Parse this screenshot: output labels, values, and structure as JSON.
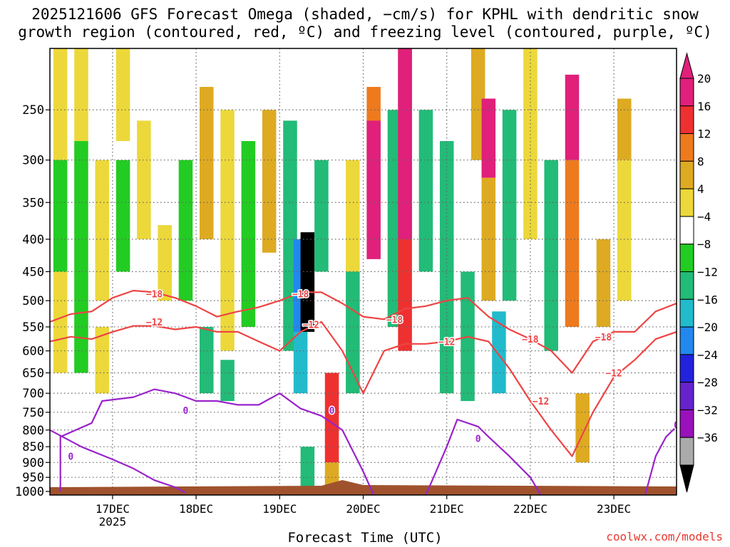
{
  "title_line1": "2025121606 GFS Forecast Omega (shaded, −cm/s) for KPHL with dendritic snow",
  "title_line2": "growth region (contoured, red, ºC) and freezing level (contoured, purple, ºC)",
  "xlabel": "Forecast Time (UTC)",
  "credit": "coolwx.com/models",
  "colors": {
    "terrain": "#a0522d",
    "dgz_contour": "#ee4444",
    "freezing_contour": "#9a22cc",
    "gridline": "#666666"
  },
  "colorbar": {
    "labels": [
      "20",
      "16",
      "12",
      "8",
      "4",
      "−4",
      "−8",
      "−12",
      "−16",
      "−20",
      "−24",
      "−28",
      "−32",
      "−36"
    ],
    "bins": [
      {
        "color": "#e0207a"
      },
      {
        "color": "#ee3030"
      },
      {
        "color": "#ee7a1e"
      },
      {
        "color": "#ddaa22"
      },
      {
        "color": "#ecd83a"
      },
      {
        "color": "#ffffff"
      },
      {
        "color": "#22cc22"
      },
      {
        "color": "#22bb77"
      },
      {
        "color": "#22bbcc"
      },
      {
        "color": "#2288ee"
      },
      {
        "color": "#2222dd"
      },
      {
        "color": "#6622cc"
      },
      {
        "color": "#9911bb"
      },
      {
        "color": "#aaaaaa"
      }
    ],
    "top_extend_color": "#e0207a",
    "bottom_extend_color": "#000000"
  },
  "chart_data": {
    "type": "heatmap",
    "x_axis": {
      "ticks": [
        "17DEC",
        "18DEC",
        "19DEC",
        "20DEC",
        "21DEC",
        "22DEC",
        "23DEC"
      ],
      "year_label": "2025",
      "range_days": [
        "2025-12-16 06",
        "2025-12-23 18"
      ]
    },
    "y_axis": {
      "label": "",
      "ticks": [
        "250",
        "300",
        "350",
        "400",
        "450",
        "500",
        "550",
        "600",
        "650",
        "700",
        "750",
        "800",
        "850",
        "900",
        "950",
        "1000"
      ],
      "range_hpa": [
        200,
        1013
      ],
      "scale": "log"
    },
    "grid": true,
    "shading_quantity": "Omega (−cm/s)",
    "omega_cells": [
      {
        "time": "2025-12-16 09",
        "p_top": 200,
        "p_bot": 300,
        "v": 6
      },
      {
        "time": "2025-12-16 09",
        "p_top": 300,
        "p_bot": 450,
        "v": -6
      },
      {
        "time": "2025-12-16 09",
        "p_top": 450,
        "p_bot": 650,
        "v": 5
      },
      {
        "time": "2025-12-16 15",
        "p_top": 200,
        "p_bot": 280,
        "v": 5
      },
      {
        "time": "2025-12-16 15",
        "p_top": 280,
        "p_bot": 650,
        "v": -6
      },
      {
        "time": "2025-12-16 21",
        "p_top": 300,
        "p_bot": 500,
        "v": 6
      },
      {
        "time": "2025-12-16 21",
        "p_top": 550,
        "p_bot": 700,
        "v": 5
      },
      {
        "time": "2025-12-17 03",
        "p_top": 300,
        "p_bot": 450,
        "v": -6
      },
      {
        "time": "2025-12-17 03",
        "p_top": 200,
        "p_bot": 280,
        "v": 6
      },
      {
        "time": "2025-12-17 09",
        "p_top": 260,
        "p_bot": 400,
        "v": 6
      },
      {
        "time": "2025-12-17 15",
        "p_top": 380,
        "p_bot": 500,
        "v": 5
      },
      {
        "time": "2025-12-17 21",
        "p_top": 300,
        "p_bot": 500,
        "v": -6
      },
      {
        "time": "2025-12-18 03",
        "p_top": 230,
        "p_bot": 400,
        "v": 10
      },
      {
        "time": "2025-12-18 03",
        "p_top": 550,
        "p_bot": 700,
        "v": -9
      },
      {
        "time": "2025-12-18 09",
        "p_top": 250,
        "p_bot": 600,
        "v": 6
      },
      {
        "time": "2025-12-18 09",
        "p_top": 620,
        "p_bot": 720,
        "v": -8
      },
      {
        "time": "2025-12-18 15",
        "p_top": 280,
        "p_bot": 550,
        "v": -6
      },
      {
        "time": "2025-12-18 21",
        "p_top": 250,
        "p_bot": 420,
        "v": 9
      },
      {
        "time": "2025-12-19 03",
        "p_top": 260,
        "p_bot": 600,
        "v": -8
      },
      {
        "time": "2025-12-19 06",
        "p_top": 400,
        "p_bot": 560,
        "v": -18
      },
      {
        "time": "2025-12-19 06",
        "p_top": 560,
        "p_bot": 700,
        "v": -12
      },
      {
        "time": "2025-12-19 08",
        "p_top": 390,
        "p_bot": 560,
        "v": -38
      },
      {
        "time": "2025-12-19 08",
        "p_top": 850,
        "p_bot": 1000,
        "v": -9
      },
      {
        "time": "2025-12-19 12",
        "p_top": 300,
        "p_bot": 450,
        "v": -8
      },
      {
        "time": "2025-12-19 15",
        "p_top": 650,
        "p_bot": 900,
        "v": 18
      },
      {
        "time": "2025-12-19 15",
        "p_top": 900,
        "p_bot": 1000,
        "v": 10
      },
      {
        "time": "2025-12-19 21",
        "p_top": 300,
        "p_bot": 450,
        "v": 6
      },
      {
        "time": "2025-12-19 21",
        "p_top": 450,
        "p_bot": 700,
        "v": -9
      },
      {
        "time": "2025-12-20 03",
        "p_top": 230,
        "p_bot": 350,
        "v": 14
      },
      {
        "time": "2025-12-20 03",
        "p_top": 260,
        "p_bot": 430,
        "v": 20
      },
      {
        "time": "2025-12-20 09",
        "p_top": 250,
        "p_bot": 550,
        "v": -9
      },
      {
        "time": "2025-12-20 12",
        "p_top": 200,
        "p_bot": 600,
        "v": 18
      },
      {
        "time": "2025-12-20 12",
        "p_top": 200,
        "p_bot": 400,
        "v": 24
      },
      {
        "time": "2025-12-20 18",
        "p_top": 250,
        "p_bot": 450,
        "v": -8
      },
      {
        "time": "2025-12-21 00",
        "p_top": 280,
        "p_bot": 700,
        "v": -10
      },
      {
        "time": "2025-12-21 06",
        "p_top": 450,
        "p_bot": 720,
        "v": -10
      },
      {
        "time": "2025-12-21 09",
        "p_top": 200,
        "p_bot": 300,
        "v": 8
      },
      {
        "time": "2025-12-21 12",
        "p_top": 240,
        "p_bot": 320,
        "v": 22
      },
      {
        "time": "2025-12-21 12",
        "p_top": 320,
        "p_bot": 500,
        "v": 10
      },
      {
        "time": "2025-12-21 15",
        "p_top": 520,
        "p_bot": 700,
        "v": -14
      },
      {
        "time": "2025-12-21 18",
        "p_top": 250,
        "p_bot": 500,
        "v": -8
      },
      {
        "time": "2025-12-22 00",
        "p_top": 200,
        "p_bot": 400,
        "v": 6
      },
      {
        "time": "2025-12-22 06",
        "p_top": 300,
        "p_bot": 600,
        "v": -9
      },
      {
        "time": "2025-12-22 12",
        "p_top": 220,
        "p_bot": 300,
        "v": 20
      },
      {
        "time": "2025-12-22 12",
        "p_top": 300,
        "p_bot": 550,
        "v": 12
      },
      {
        "time": "2025-12-22 15",
        "p_top": 700,
        "p_bot": 900,
        "v": 8
      },
      {
        "time": "2025-12-22 21",
        "p_top": 400,
        "p_bot": 550,
        "v": 8
      },
      {
        "time": "2025-12-23 03",
        "p_top": 240,
        "p_bot": 300,
        "v": 10
      },
      {
        "time": "2025-12-23 03",
        "p_top": 300,
        "p_bot": 500,
        "v": 5
      }
    ],
    "dgz_contours": [
      {
        "label": "−18",
        "color": "#ee4444",
        "points": [
          [
            "2025-12-16 06",
            540
          ],
          [
            "2025-12-16 12",
            525
          ],
          [
            "2025-12-16 18",
            520
          ],
          [
            "2025-12-17 00",
            495
          ],
          [
            "2025-12-17 06",
            482
          ],
          [
            "2025-12-17 12",
            485
          ],
          [
            "2025-12-17 18",
            495
          ],
          [
            "2025-12-18 00",
            510
          ],
          [
            "2025-12-18 06",
            530
          ],
          [
            "2025-12-18 12",
            520
          ],
          [
            "2025-12-18 18",
            512
          ],
          [
            "2025-12-19 00",
            500
          ],
          [
            "2025-12-19 06",
            485
          ],
          [
            "2025-12-19 12",
            485
          ],
          [
            "2025-12-19 18",
            505
          ],
          [
            "2025-12-20 00",
            530
          ],
          [
            "2025-12-20 06",
            535
          ],
          [
            "2025-12-20 12",
            515
          ],
          [
            "2025-12-20 18",
            510
          ],
          [
            "2025-12-21 00",
            500
          ],
          [
            "2025-12-21 06",
            495
          ],
          [
            "2025-12-21 12",
            530
          ],
          [
            "2025-12-21 18",
            555
          ],
          [
            "2025-12-22 00",
            575
          ],
          [
            "2025-12-22 06",
            600
          ],
          [
            "2025-12-22 12",
            650
          ],
          [
            "2025-12-22 18",
            580
          ],
          [
            "2025-12-23 00",
            560
          ],
          [
            "2025-12-23 06",
            560
          ],
          [
            "2025-12-23 12",
            520
          ],
          [
            "2025-12-23 18",
            505
          ]
        ]
      },
      {
        "label": "−12",
        "color": "#ee4444",
        "points": [
          [
            "2025-12-16 06",
            580
          ],
          [
            "2025-12-16 12",
            570
          ],
          [
            "2025-12-16 18",
            575
          ],
          [
            "2025-12-17 00",
            560
          ],
          [
            "2025-12-17 06",
            548
          ],
          [
            "2025-12-17 12",
            548
          ],
          [
            "2025-12-17 18",
            555
          ],
          [
            "2025-12-18 00",
            550
          ],
          [
            "2025-12-18 06",
            560
          ],
          [
            "2025-12-18 12",
            560
          ],
          [
            "2025-12-18 18",
            580
          ],
          [
            "2025-12-19 00",
            600
          ],
          [
            "2025-12-19 06",
            560
          ],
          [
            "2025-12-19 12",
            540
          ],
          [
            "2025-12-19 18",
            600
          ],
          [
            "2025-12-20 00",
            700
          ],
          [
            "2025-12-20 06",
            600
          ],
          [
            "2025-12-20 12",
            585
          ],
          [
            "2025-12-20 18",
            585
          ],
          [
            "2025-12-21 00",
            580
          ],
          [
            "2025-12-21 06",
            570
          ],
          [
            "2025-12-21 12",
            580
          ],
          [
            "2025-12-21 18",
            640
          ],
          [
            "2025-12-22 00",
            720
          ],
          [
            "2025-12-22 06",
            800
          ],
          [
            "2025-12-22 12",
            880
          ],
          [
            "2025-12-22 18",
            750
          ],
          [
            "2025-12-23 00",
            660
          ],
          [
            "2025-12-23 06",
            620
          ],
          [
            "2025-12-23 12",
            575
          ],
          [
            "2025-12-23 18",
            560
          ]
        ]
      }
    ],
    "dgz_labels": [
      {
        "text": "−18",
        "time": "2025-12-17 12",
        "p": 488
      },
      {
        "text": "−12",
        "time": "2025-12-17 12",
        "p": 540
      },
      {
        "text": "−18",
        "time": "2025-12-19 06",
        "p": 488
      },
      {
        "text": "−12",
        "time": "2025-12-19 09",
        "p": 545
      },
      {
        "text": "−18",
        "time": "2025-12-20 09",
        "p": 535
      },
      {
        "text": "−12",
        "time": "2025-12-21 00",
        "p": 580
      },
      {
        "text": "−18",
        "time": "2025-12-22 00",
        "p": 575
      },
      {
        "text": "−12",
        "time": "2025-12-22 03",
        "p": 720
      },
      {
        "text": "−18",
        "time": "2025-12-22 21",
        "p": 570
      },
      {
        "text": "−12",
        "time": "2025-12-23 00",
        "p": 650
      }
    ],
    "freezing_contours": [
      {
        "label": "0",
        "color": "#9a22cc",
        "points": [
          [
            "2025-12-16 09",
            1000
          ],
          [
            "2025-12-16 09",
            820
          ],
          [
            "2025-12-16 18",
            780
          ],
          [
            "2025-12-16 21",
            720
          ],
          [
            "2025-12-17 06",
            710
          ],
          [
            "2025-12-17 12",
            690
          ],
          [
            "2025-12-17 18",
            700
          ],
          [
            "2025-12-18 00",
            720
          ],
          [
            "2025-12-18 06",
            720
          ],
          [
            "2025-12-18 12",
            730
          ],
          [
            "2025-12-18 18",
            730
          ],
          [
            "2025-12-19 00",
            700
          ],
          [
            "2025-12-19 06",
            740
          ],
          [
            "2025-12-19 12",
            760
          ],
          [
            "2025-12-19 18",
            800
          ],
          [
            "2025-12-20 00",
            930
          ],
          [
            "2025-12-20 03",
            1013
          ]
        ]
      },
      {
        "label": "0",
        "color": "#9a22cc",
        "points": [
          [
            "2025-12-16 06",
            800
          ],
          [
            "2025-12-16 15",
            850
          ],
          [
            "2025-12-17 00",
            890
          ],
          [
            "2025-12-17 06",
            920
          ],
          [
            "2025-12-17 12",
            960
          ],
          [
            "2025-12-17 18",
            985
          ],
          [
            "2025-12-17 21",
            1005
          ]
        ]
      },
      {
        "label": "0",
        "color": "#9a22cc",
        "points": [
          [
            "2025-12-20 18",
            1013
          ],
          [
            "2025-12-21 00",
            850
          ],
          [
            "2025-12-21 03",
            770
          ],
          [
            "2025-12-21 09",
            790
          ],
          [
            "2025-12-21 12",
            820
          ],
          [
            "2025-12-21 18",
            880
          ],
          [
            "2025-12-22 00",
            950
          ],
          [
            "2025-12-22 03",
            1013
          ]
        ]
      },
      {
        "label": "0",
        "color": "#9a22cc",
        "points": [
          [
            "2025-12-23 09",
            1013
          ],
          [
            "2025-12-23 12",
            880
          ],
          [
            "2025-12-23 15",
            820
          ],
          [
            "2025-12-23 18",
            790
          ]
        ]
      }
    ],
    "freezing_labels": [
      {
        "text": "0",
        "time": "2025-12-16 12",
        "p": 880
      },
      {
        "text": "0",
        "time": "2025-12-17 21",
        "p": 745
      },
      {
        "text": "0",
        "time": "2025-12-19 15",
        "p": 745
      },
      {
        "text": "0",
        "time": "2025-12-21 09",
        "p": 825
      },
      {
        "text": "0",
        "time": "2025-12-23 18",
        "p": 785
      }
    ]
  }
}
